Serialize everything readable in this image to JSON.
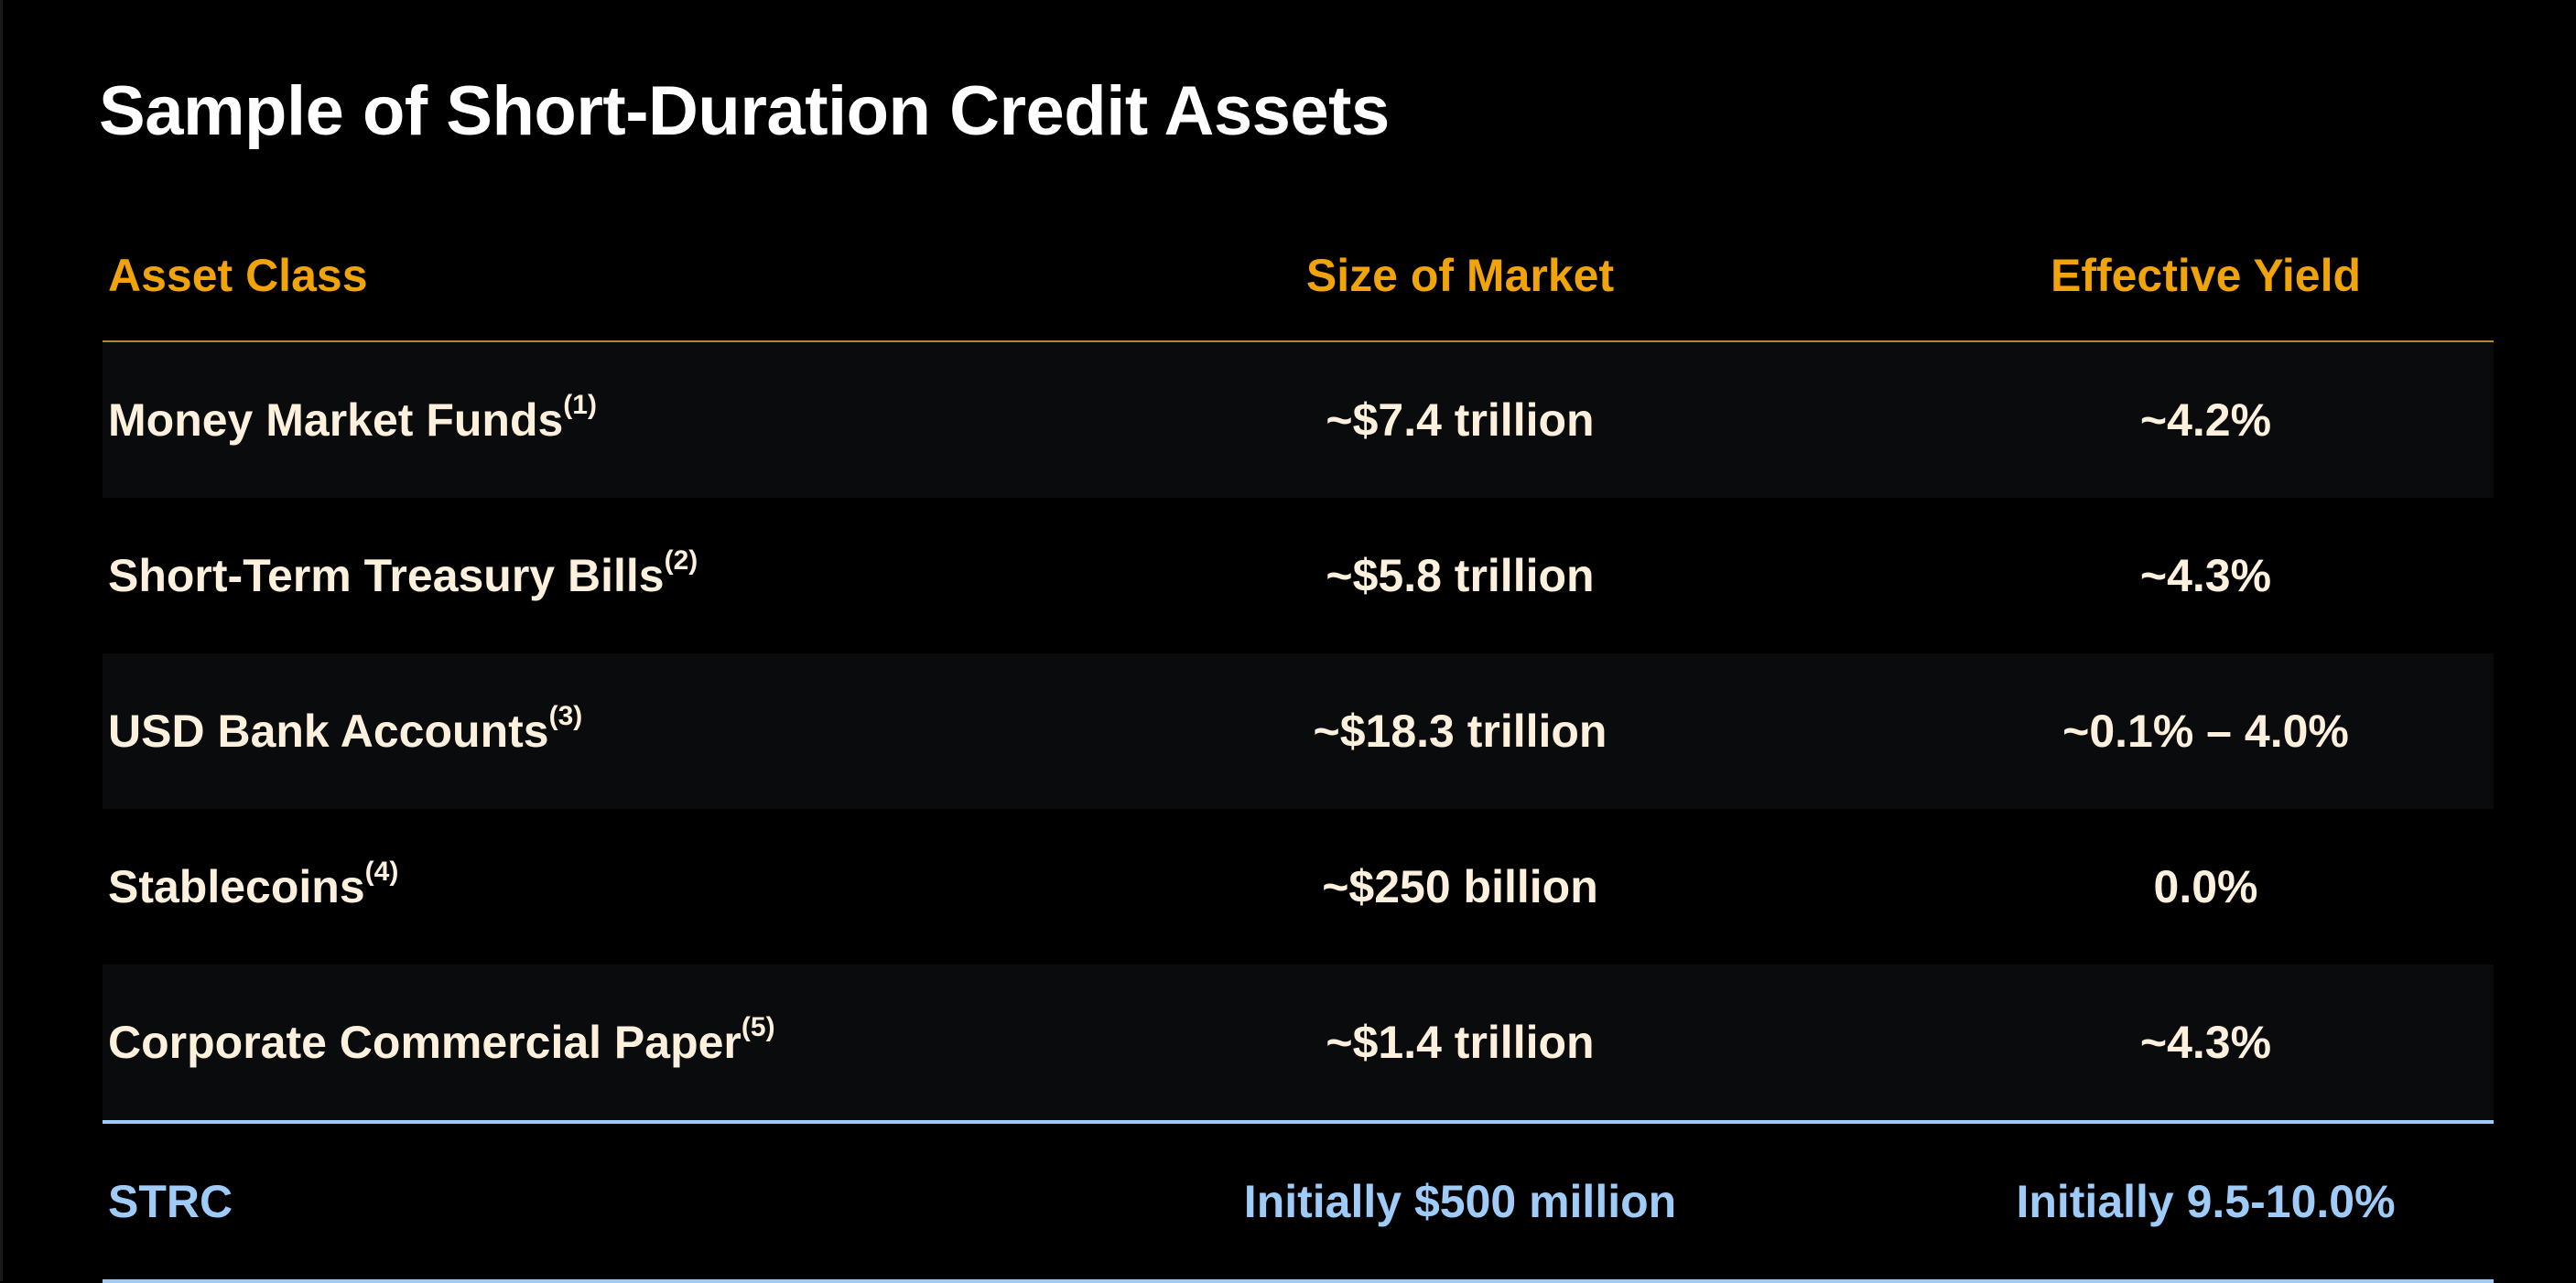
{
  "title": "Sample of Short-Duration Credit Assets",
  "colors": {
    "header": "#f0a30a",
    "body_text": "#fdf0dc",
    "highlight": "#9ecbf7"
  },
  "table": {
    "headers": [
      "Asset Class",
      "Size of Market",
      "Effective Yield"
    ],
    "rows": [
      {
        "asset": "Money Market Funds",
        "note": "(1)",
        "size": "~$7.4 trillion",
        "yield": "~4.2%"
      },
      {
        "asset": "Short-Term Treasury Bills",
        "note": "(2)",
        "size": "~$5.8 trillion",
        "yield": "~4.3%"
      },
      {
        "asset": "USD Bank Accounts",
        "note": "(3)",
        "size": "~$18.3 trillion",
        "yield": "~0.1% – 4.0%"
      },
      {
        "asset": "Stablecoins",
        "note": "(4)",
        "size": "~$250 billion",
        "yield": "0.0%"
      },
      {
        "asset": "Corporate Commercial Paper",
        "note": "(5)",
        "size": "~$1.4 trillion",
        "yield": "~4.3%"
      }
    ],
    "highlight_row": {
      "asset": "STRC",
      "size": "Initially $500 million",
      "yield": "Initially 9.5-10.0%"
    }
  }
}
